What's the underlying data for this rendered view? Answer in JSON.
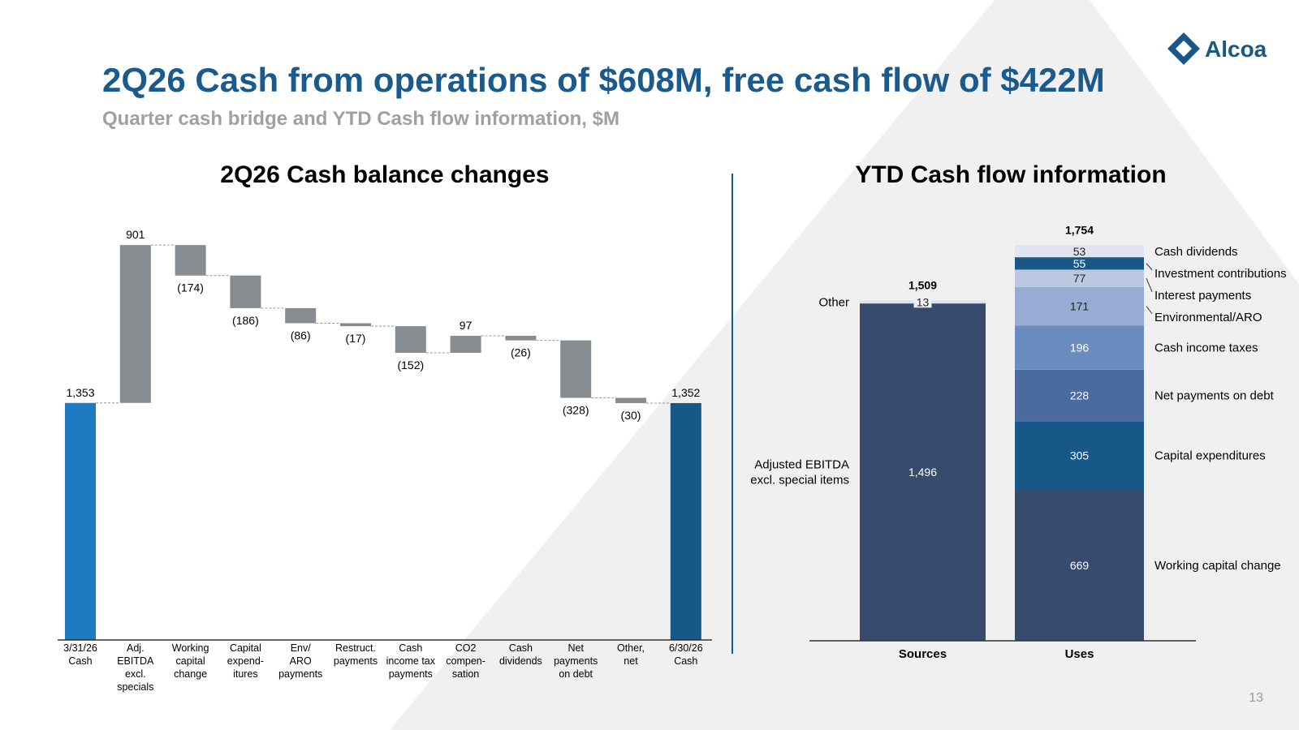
{
  "header": {
    "title": "2Q26 Cash from operations of $608M, free cash flow of $422M",
    "subtitle": "Quarter cash bridge and YTD Cash flow information, $M",
    "logo": "Alcoa"
  },
  "page_number": "13",
  "chart_data": [
    {
      "type": "waterfall",
      "title": "2Q26 Cash balance changes",
      "categories": [
        "3/31/26\nCash",
        "Adj.\nEBITDA\nexcl.\nspecials",
        "Working\ncapital\nchange",
        "Capital\nexpend-\nitures",
        "Env/\nARO\npayments",
        "Restruct.\npayments",
        "Cash\nincome tax\npayments",
        "CO2\ncompen-\nsation",
        "Cash\ndividends",
        "Net\npayments\non debt",
        "Other,\nnet",
        "6/30/26\nCash"
      ],
      "values": [
        1353,
        901,
        -174,
        -186,
        -86,
        -17,
        -152,
        97,
        -26,
        -328,
        -30,
        1352
      ],
      "value_labels": [
        "1,353",
        "901",
        "(174)",
        "(186)",
        "(86)",
        "(17)",
        "(152)",
        "97",
        "(26)",
        "(328)",
        "(30)",
        "1,352"
      ],
      "measure": [
        "absolute",
        "relative",
        "relative",
        "relative",
        "relative",
        "relative",
        "relative",
        "relative",
        "relative",
        "relative",
        "relative",
        "absolute"
      ],
      "colors": [
        "#1f7bc1",
        "#878c91",
        "#878c91",
        "#878c91",
        "#878c91",
        "#878c91",
        "#878c91",
        "#878c91",
        "#878c91",
        "#878c91",
        "#878c91",
        "#175888"
      ],
      "ylim": [
        0,
        2500
      ]
    },
    {
      "type": "stacked_bar",
      "title": "YTD Cash flow information",
      "categories": [
        "Sources",
        "Uses"
      ],
      "series": [
        {
          "name": "Adjusted EBITDA\nexcl. special items",
          "color": "#374b6d",
          "values": [
            1496,
            null
          ],
          "value_labels": [
            "1,496",
            null
          ]
        },
        {
          "name": "Other",
          "color": "#dde3ee",
          "values": [
            13,
            null
          ]
        },
        {
          "name": "Working capital change",
          "color": "#374b6d",
          "values": [
            null,
            669
          ]
        },
        {
          "name": "Capital expenditures",
          "color": "#175888",
          "values": [
            null,
            305
          ]
        },
        {
          "name": "Net payments on debt",
          "color": "#4b6b9e",
          "values": [
            null,
            228
          ]
        },
        {
          "name": "Cash income taxes",
          "color": "#6b8cbf",
          "values": [
            null,
            196
          ]
        },
        {
          "name": "Environmental/ARO",
          "color": "#98abd2",
          "values": [
            null,
            171
          ]
        },
        {
          "name": "Interest payments",
          "color": "#bcc8e2",
          "values": [
            null,
            77
          ]
        },
        {
          "name": "Investment contributions",
          "color": "#175888",
          "values": [
            null,
            55
          ]
        },
        {
          "name": "Cash dividends",
          "color": "#dfe4f0",
          "values": [
            null,
            53
          ]
        }
      ],
      "totals": [
        1509,
        1754
      ],
      "total_labels": [
        "1,509",
        "1,754"
      ],
      "ylim": [
        0,
        2000
      ]
    }
  ]
}
